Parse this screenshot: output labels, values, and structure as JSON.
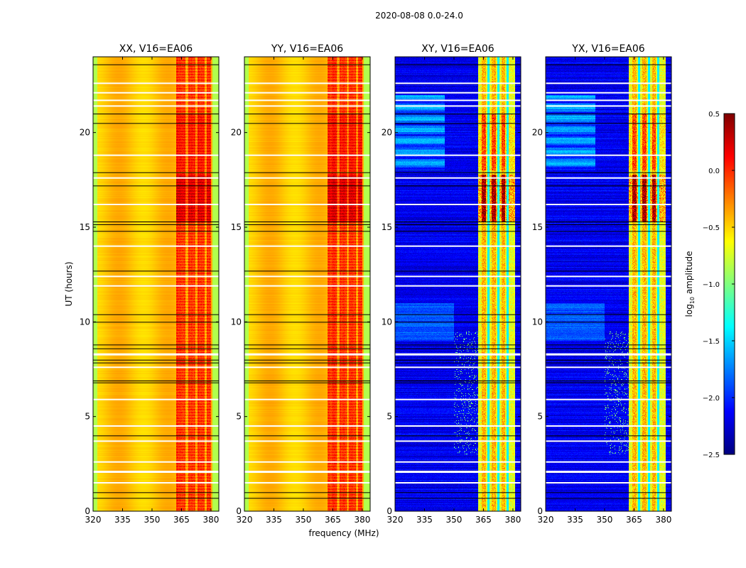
{
  "chart_data": {
    "type": "heatmap",
    "title": "2020-08-08 0.0-24.0",
    "xlabel": "frequency (MHz)",
    "ylabel": "UT (hours)",
    "xlim": [
      320,
      384
    ],
    "ylim": [
      0,
      24
    ],
    "xticks": [
      "320",
      "335",
      "350",
      "365",
      "380"
    ],
    "yticks": [
      "0",
      "5",
      "10",
      "15",
      "20"
    ],
    "panels": [
      {
        "title": "XX, V16=EA06",
        "kind": "parallel"
      },
      {
        "title": "YY, V16=EA06",
        "kind": "parallel"
      },
      {
        "title": "XY, V16=EA06",
        "kind": "cross"
      },
      {
        "title": "YX, V16=EA06",
        "kind": "cross"
      }
    ],
    "approx_levels": {
      "parallel": {
        "320-361 MHz": -0.45,
        "362-380 MHz": 0.05,
        "band_edges": -0.85
      },
      "cross": {
        "320-361 MHz": -2.2,
        "362-381 MHz": -0.6
      }
    },
    "flagged_ut_hours_white": [
      22.6,
      22.1,
      21.7,
      21.4,
      18.8,
      17.6,
      16.2,
      14.0,
      12.4,
      11.9,
      8.3,
      7.6,
      5.9,
      4.5,
      3.7,
      2.6,
      2.1,
      1.5
    ],
    "flagged_ut_hours_black": [
      23.6,
      21.0,
      20.5,
      17.9,
      17.2,
      15.3,
      15.15,
      14.8,
      12.7,
      10.4,
      10.0,
      8.8,
      8.6,
      8.0,
      7.85,
      6.9,
      6.8,
      4.0,
      1.0,
      0.7
    ],
    "colorbar": {
      "label": "log10 amplitude",
      "label_main": "log",
      "label_sub": "10",
      "label_rest": " amplitude",
      "range": [
        -2.5,
        0.5
      ],
      "ticks": [
        "0.5",
        "0.0",
        "−0.5",
        "−1.0",
        "−1.5",
        "−2.0",
        "−2.5"
      ],
      "colormap": "jet"
    }
  }
}
